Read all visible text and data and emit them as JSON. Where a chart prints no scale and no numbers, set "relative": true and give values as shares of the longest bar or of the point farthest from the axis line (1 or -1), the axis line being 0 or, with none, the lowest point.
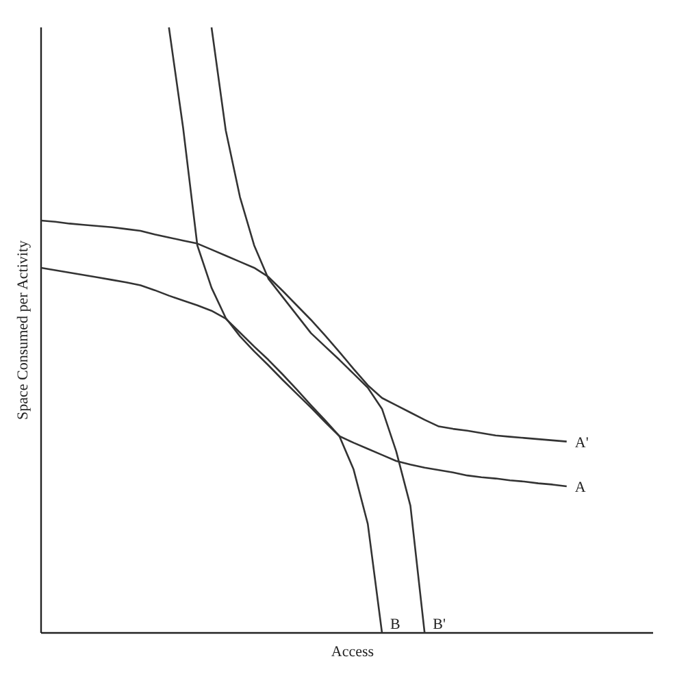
{
  "chart_data": {
    "type": "line",
    "relative": true,
    "xlabel": "Access",
    "ylabel": "Space Consumed per Activity",
    "line_style": "solid",
    "categories": [
      null,
      null,
      null,
      null,
      null,
      null,
      null,
      null,
      null,
      null,
      null,
      null,
      null,
      null,
      null,
      null,
      null,
      null,
      null,
      null,
      null,
      null,
      null,
      null,
      null,
      null,
      null,
      null,
      null,
      null,
      null,
      null,
      null,
      null,
      null,
      null,
      null,
      null,
      null,
      null,
      null
    ],
    "series": [
      {
        "name": "A'",
        "color": "#333333",
        "values": [
          0.681,
          0.679,
          0.676,
          0.674,
          0.672,
          0.67,
          0.667,
          0.664,
          0.658,
          0.653,
          0.648,
          0.643,
          0.633,
          0.623,
          0.613,
          0.603,
          0.588,
          0.565,
          0.541,
          0.517,
          0.491,
          0.464,
          0.436,
          0.409,
          0.388,
          0.376,
          0.364,
          0.352,
          0.341,
          0.337,
          0.334,
          0.33,
          0.326,
          0.324,
          0.322,
          0.32,
          0.318,
          0.316,
          null,
          null,
          null
        ]
      },
      {
        "name": "A",
        "color": "#333333",
        "values": [
          0.603,
          0.599,
          0.595,
          0.591,
          0.587,
          0.583,
          0.579,
          0.574,
          0.566,
          0.557,
          0.549,
          0.541,
          0.532,
          0.519,
          0.496,
          0.473,
          0.451,
          0.427,
          0.402,
          0.376,
          0.351,
          0.325,
          0.314,
          0.304,
          0.294,
          0.284,
          0.278,
          0.273,
          0.269,
          0.265,
          0.26,
          0.257,
          0.255,
          0.252,
          0.25,
          0.247,
          0.245,
          0.242,
          null,
          null,
          null
        ]
      },
      {
        "name": "B",
        "color": "#333333",
        "values": [
          null,
          null,
          null,
          null,
          null,
          null,
          null,
          null,
          null,
          1,
          0.834,
          0.64,
          0.57,
          0.52,
          0.49,
          0.465,
          0.442,
          0.418,
          0.395,
          0.372,
          0.348,
          0.325,
          0.27,
          0.18,
          0,
          null,
          null,
          null,
          null,
          null,
          null,
          null,
          null,
          null,
          null,
          null,
          null,
          null,
          null,
          null,
          null
        ]
      },
      {
        "name": "B'",
        "color": "#333333",
        "values": [
          null,
          null,
          null,
          null,
          null,
          null,
          null,
          null,
          null,
          null,
          null,
          null,
          1,
          0.83,
          0.72,
          0.64,
          0.585,
          0.555,
          0.525,
          0.495,
          0.473,
          0.451,
          0.428,
          0.405,
          0.37,
          0.3,
          0.21,
          0,
          null,
          null,
          null,
          null,
          null,
          null,
          null,
          null,
          null,
          null,
          null,
          null,
          null
        ]
      }
    ]
  }
}
